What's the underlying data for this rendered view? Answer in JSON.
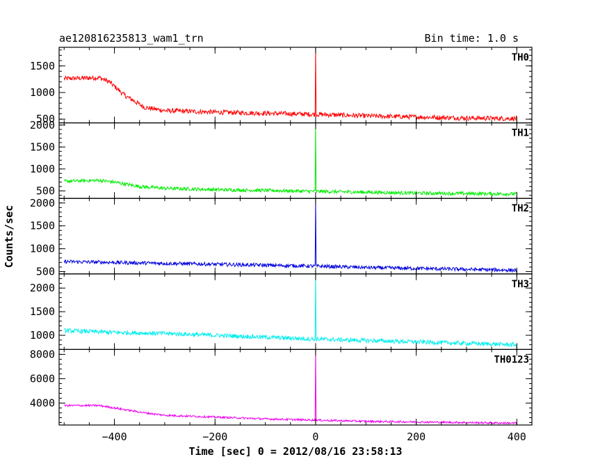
{
  "header": {
    "title": "ae120816235813_wam1_trn",
    "bin_time": "Bin time: 1.0 s"
  },
  "chart_data": {
    "type": "line",
    "title": "ae120816235813_wam1_trn",
    "xlabel": "Time [sec] 0 = 2012/08/16 23:58:13",
    "ylabel": "Counts/sec",
    "xlim": [
      -510,
      430
    ],
    "x_ticks": [
      -400,
      -200,
      0,
      200,
      400
    ],
    "x_tick_labels": [
      "−400",
      "−200",
      "0",
      "200",
      "400"
    ],
    "x_range": [
      -500,
      400
    ],
    "grid": false,
    "panels": [
      {
        "name": "TH0",
        "color": "#ff0000",
        "ylim": [
          430,
          1850
        ],
        "y_ticks": [
          500,
          1000,
          1500
        ],
        "profile": [
          [
            -500,
            1260
          ],
          [
            -430,
            1280
          ],
          [
            -410,
            1200
          ],
          [
            -380,
            950
          ],
          [
            -340,
            720
          ],
          [
            -300,
            660
          ],
          [
            -200,
            630
          ],
          [
            -100,
            610
          ],
          [
            0,
            590
          ],
          [
            100,
            560
          ],
          [
            200,
            540
          ],
          [
            300,
            520
          ],
          [
            400,
            510
          ]
        ],
        "noise": 45,
        "spike": {
          "x": 0,
          "peak": 1850
        }
      },
      {
        "name": "TH1",
        "color": "#00ee00",
        "ylim": [
          330,
          2050
        ],
        "y_ticks": [
          500,
          1000,
          1500,
          2000
        ],
        "profile": [
          [
            -500,
            720
          ],
          [
            -430,
            740
          ],
          [
            -400,
            700
          ],
          [
            -350,
            600
          ],
          [
            -300,
            560
          ],
          [
            -200,
            530
          ],
          [
            -100,
            510
          ],
          [
            0,
            490
          ],
          [
            100,
            470
          ],
          [
            200,
            450
          ],
          [
            300,
            440
          ],
          [
            400,
            430
          ]
        ],
        "noise": 40,
        "spike": {
          "x": 0,
          "peak": 2050
        }
      },
      {
        "name": "TH2",
        "color": "#0000dd",
        "ylim": [
          450,
          2100
        ],
        "y_ticks": [
          500,
          1000,
          1500,
          2000
        ],
        "profile": [
          [
            -500,
            720
          ],
          [
            -400,
            700
          ],
          [
            -300,
            680
          ],
          [
            -200,
            660
          ],
          [
            -100,
            640
          ],
          [
            0,
            620
          ],
          [
            100,
            590
          ],
          [
            200,
            570
          ],
          [
            300,
            550
          ],
          [
            400,
            530
          ]
        ],
        "noise": 40,
        "spike": {
          "x": 0,
          "peak": 2100
        }
      },
      {
        "name": "TH3",
        "color": "#00eeee",
        "ylim": [
          700,
          2300
        ],
        "y_ticks": [
          1000,
          1500,
          2000
        ],
        "profile": [
          [
            -500,
            1100
          ],
          [
            -400,
            1060
          ],
          [
            -300,
            1040
          ],
          [
            -200,
            1000
          ],
          [
            -100,
            960
          ],
          [
            0,
            920
          ],
          [
            100,
            890
          ],
          [
            200,
            860
          ],
          [
            300,
            830
          ],
          [
            400,
            800
          ]
        ],
        "noise": 45,
        "spike": {
          "x": 0,
          "peak": 2300
        }
      },
      {
        "name": "TH0123",
        "color": "#ee00ee",
        "ylim": [
          2200,
          8400
        ],
        "y_ticks": [
          4000,
          6000,
          8000
        ],
        "profile": [
          [
            -500,
            3800
          ],
          [
            -430,
            3800
          ],
          [
            -400,
            3600
          ],
          [
            -340,
            3200
          ],
          [
            -300,
            3000
          ],
          [
            -200,
            2850
          ],
          [
            -100,
            2700
          ],
          [
            0,
            2600
          ],
          [
            100,
            2500
          ],
          [
            200,
            2450
          ],
          [
            300,
            2400
          ],
          [
            400,
            2350
          ]
        ],
        "noise": 80,
        "spike": {
          "x": 0,
          "peak": 8400
        }
      }
    ]
  }
}
